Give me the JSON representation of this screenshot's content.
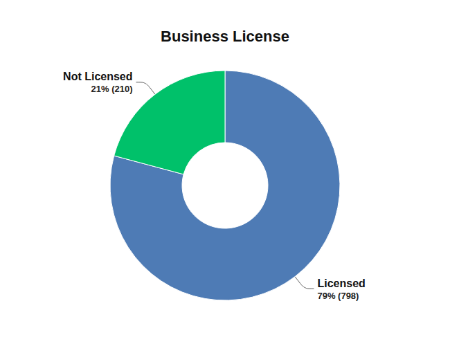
{
  "chart_data": {
    "type": "pie",
    "title": "Business License",
    "categories": [
      "Licensed",
      "Not Licensed"
    ],
    "values": [
      798,
      210
    ],
    "value_labels": [
      "79% (798)",
      "21% (210)"
    ],
    "colors": [
      "#4e7bb5",
      "#00c16a"
    ],
    "data_labels": true
  }
}
